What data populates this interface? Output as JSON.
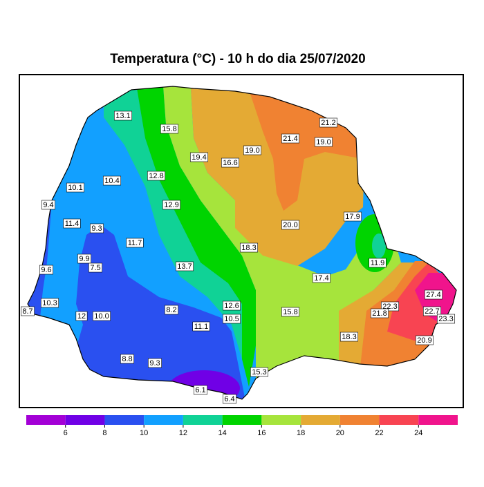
{
  "title": "Temperatura (°C) - 10 h do dia 25/07/2020",
  "stations": [
    "13.1",
    "15.8",
    "21.2",
    "21.4",
    "19.0",
    "19.0",
    "19.4",
    "16.6",
    "12.8",
    "10.4",
    "10.1",
    "9.4",
    "12.9",
    "11.4",
    "9.3",
    "20.0",
    "17.9",
    "18.3",
    "11.7",
    "9.9",
    "7.5",
    "11.9",
    "13.7",
    "9.6",
    "17.4",
    "27.4",
    "10.3",
    "8.7",
    "12.6",
    "22.3",
    "8.2",
    "21.8",
    "22.7",
    "15.8",
    "12",
    "10.0",
    "10.5",
    "23.3",
    "11.1",
    "18.3",
    "20.9",
    "8.8",
    "9.3",
    "15.3",
    "6.1",
    "6.4"
  ],
  "colorbar": {
    "bins": [
      4,
      6,
      8,
      10,
      12,
      14,
      16,
      18,
      20,
      22,
      24,
      26
    ],
    "colors": [
      "#a300d6",
      "#7000e6",
      "#2a50f0",
      "#12a0ff",
      "#10d296",
      "#00d400",
      "#a6e43c",
      "#e4aa34",
      "#f08232",
      "#f84452",
      "#f0148c"
    ],
    "ticks": [
      6,
      8,
      10,
      12,
      14,
      16,
      18,
      20,
      22,
      24
    ]
  }
}
